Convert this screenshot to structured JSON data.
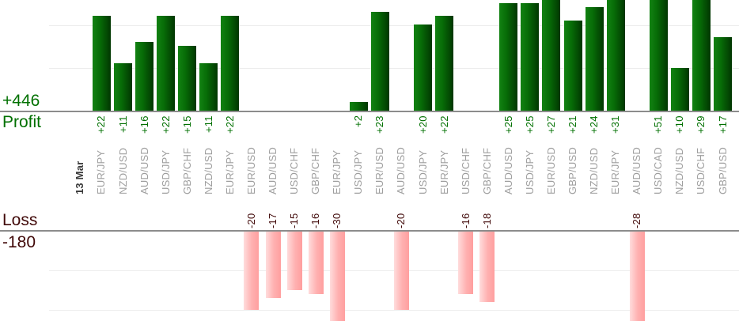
{
  "chart_data": {
    "type": "bar",
    "date": "13 Mar",
    "profit": {
      "axis_label": "Profit",
      "total": "+446"
    },
    "loss": {
      "axis_label": "Loss",
      "total": "-180"
    },
    "trades": [
      {
        "pair": "EUR/JPY",
        "value": 22,
        "label": "+22"
      },
      {
        "pair": "NZD/USD",
        "value": 11,
        "label": "+11"
      },
      {
        "pair": "AUD/USD",
        "value": 16,
        "label": "+16"
      },
      {
        "pair": "USD/JPY",
        "value": 22,
        "label": "+22"
      },
      {
        "pair": "GBP/CHF",
        "value": 15,
        "label": "+15"
      },
      {
        "pair": "NZD/USD",
        "value": 11,
        "label": "+11"
      },
      {
        "pair": "EUR/JPY",
        "value": 22,
        "label": "+22"
      },
      {
        "pair": "EUR/USD",
        "value": -20,
        "label": "-20"
      },
      {
        "pair": "AUD/USD",
        "value": -17,
        "label": "-17"
      },
      {
        "pair": "USD/CHF",
        "value": -15,
        "label": "-15"
      },
      {
        "pair": "GBP/CHF",
        "value": -16,
        "label": "-16"
      },
      {
        "pair": "EUR/JPY",
        "value": -30,
        "label": "-30"
      },
      {
        "pair": "USD/JPY",
        "value": 2,
        "label": "+2"
      },
      {
        "pair": "EUR/USD",
        "value": 23,
        "label": "+23"
      },
      {
        "pair": "AUD/USD",
        "value": -20,
        "label": "-20"
      },
      {
        "pair": "USD/JPY",
        "value": 20,
        "label": "+20"
      },
      {
        "pair": "EUR/JPY",
        "value": 22,
        "label": "+22"
      },
      {
        "pair": "USD/CHF",
        "value": -16,
        "label": "-16"
      },
      {
        "pair": "GBP/CHF",
        "value": -18,
        "label": "-18"
      },
      {
        "pair": "AUD/USD",
        "value": 25,
        "label": "+25"
      },
      {
        "pair": "USD/JPY",
        "value": 25,
        "label": "+25"
      },
      {
        "pair": "EUR/USD",
        "value": 27,
        "label": "+27"
      },
      {
        "pair": "GBP/USD",
        "value": 21,
        "label": "+21"
      },
      {
        "pair": "NZD/USD",
        "value": 24,
        "label": "+24"
      },
      {
        "pair": "EUR/JPY",
        "value": 31,
        "label": "+31"
      },
      {
        "pair": "AUD/USD",
        "value": -28,
        "label": "-28"
      },
      {
        "pair": "USD/CAD",
        "value": 51,
        "label": "+51"
      },
      {
        "pair": "NZD/USD",
        "value": 10,
        "label": "+10"
      },
      {
        "pair": "USD/CHF",
        "value": 29,
        "label": "+29"
      },
      {
        "pair": "GBP/USD",
        "value": 17,
        "label": "+17"
      }
    ],
    "layout_hints": {
      "grid": true,
      "gridlines_every": 10,
      "profit_visible_range": [
        0,
        26
      ],
      "loss_visible_range": [
        0,
        -23
      ],
      "tall_bars_clipped": true,
      "legend": "none"
    },
    "colors": {
      "profit_text": "#007000",
      "loss_text": "#400808",
      "pair_label": "#9e9e9e",
      "date_label": "#3a3a3a",
      "green_bar_light": "#128212",
      "green_bar_mid": "#076c07",
      "green_bar_dark": "#013601",
      "pink_bar_light": "#ffdcdc",
      "pink_bar_mid": "#ffb0b0",
      "pink_bar_dark": "#ff9f9f",
      "axis_line": "#8c8c8c",
      "gridline": "#ececec"
    }
  }
}
